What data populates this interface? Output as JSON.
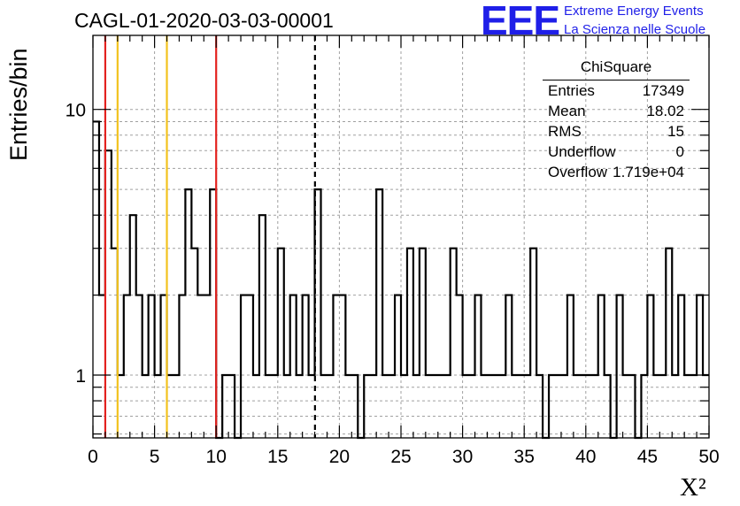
{
  "header": {
    "run_title": "CAGL-01-2020-03-03-00001",
    "logo_text": "EEE",
    "logo_line1": "Extreme Energy Events",
    "logo_line2": "La Scienza nelle Scuole",
    "logo_color": "#1f1fe8"
  },
  "stats": {
    "title": "ChiSquare",
    "rows": [
      {
        "name": "Entries",
        "value": "17349"
      },
      {
        "name": "Mean",
        "value": "18.02"
      },
      {
        "name": "RMS",
        "value": "15"
      },
      {
        "name": "Underflow",
        "value": "0"
      },
      {
        "name": "Overflow",
        "value": "1.719e+04"
      }
    ]
  },
  "colors": {
    "histogram": "#000000",
    "red_line": "#e3221f",
    "yellow_line": "#f2c21e",
    "grid": "#a0a0a0"
  },
  "chart_data": {
    "type": "histogram",
    "xlabel": "X²",
    "ylabel": "Entries/bin",
    "xlim": [
      0,
      50
    ],
    "ylim": [
      0.58,
      19
    ],
    "log_y": true,
    "grid": true,
    "bin_width": 0.5,
    "x_ticks": [
      "0",
      "5",
      "10",
      "15",
      "20",
      "25",
      "30",
      "35",
      "40",
      "45",
      "50"
    ],
    "y_ticks": [
      "1",
      "10"
    ],
    "bin_values": [
      9,
      2,
      7,
      3,
      1,
      2,
      4,
      2,
      1,
      2,
      1,
      2,
      1,
      1,
      2,
      5,
      3,
      2,
      2,
      5,
      0,
      1,
      1,
      0,
      2,
      2,
      1,
      4,
      1,
      1,
      3,
      1,
      2,
      1,
      2,
      1,
      5,
      1,
      1,
      2,
      2,
      1,
      1,
      0,
      1,
      1,
      5,
      1,
      1,
      2,
      1,
      3,
      1,
      3,
      1,
      1,
      1,
      1,
      3,
      2,
      1,
      1,
      2,
      1,
      1,
      1,
      1,
      2,
      1,
      1,
      1,
      3,
      1,
      0,
      1,
      1,
      1,
      2,
      1,
      1,
      1,
      1,
      2,
      1,
      0,
      2,
      1,
      1,
      0,
      1,
      2,
      1,
      1,
      3,
      1,
      2,
      1,
      1,
      2,
      1
    ],
    "vertical_markers": [
      {
        "x": 1,
        "color": "red"
      },
      {
        "x": 2,
        "color": "yellow"
      },
      {
        "x": 6,
        "color": "yellow"
      },
      {
        "x": 10,
        "color": "red"
      },
      {
        "x": 18.02,
        "color": "black-dashed"
      }
    ]
  }
}
